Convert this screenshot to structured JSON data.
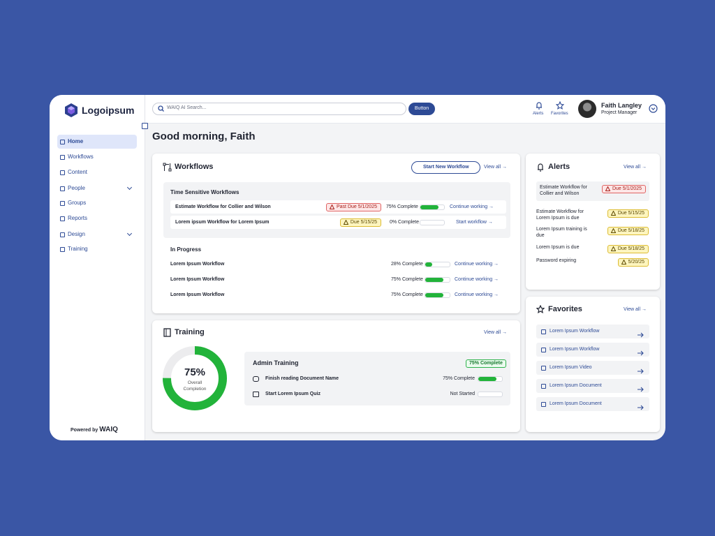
{
  "brand": {
    "name": "Logoipsum",
    "powered_by": "Powered by",
    "powered_brand": "WAIQ"
  },
  "nav": [
    {
      "label": "Home",
      "active": true
    },
    {
      "label": "Workflows"
    },
    {
      "label": "Content"
    },
    {
      "label": "People",
      "expandable": true
    },
    {
      "label": "Groups"
    },
    {
      "label": "Reports"
    },
    {
      "label": "Design",
      "expandable": true
    },
    {
      "label": "Training"
    }
  ],
  "topbar": {
    "search_placeholder": "WAIQ AI Search...",
    "button": "Button",
    "alerts": "Alerts",
    "favorites": "Favorites",
    "user_name": "Faith Langley",
    "user_role": "Project Manager"
  },
  "greeting": "Good morning, Faith",
  "workflows": {
    "title": "Workflows",
    "new_button": "Start New Workflow",
    "view_all": "View all →",
    "time_sensitive": {
      "title": "Time Sensitive Workflows",
      "rows": [
        {
          "name": "Estimate Workflow for Collier and Wilson",
          "badge": "Past Due 5/1/2025",
          "tone": "red",
          "label": "75% Complete",
          "progress": 75,
          "action": "Continue working →"
        },
        {
          "name": "Lorem ipsum Workflow for Lorem Ipsum",
          "badge": "Due 5/15/25",
          "tone": "yellow",
          "label": "0% Complete",
          "progress": 0,
          "action": "Start workflow →"
        }
      ]
    },
    "in_progress": {
      "title": "In Progress",
      "rows": [
        {
          "name": "Lorem Ipsum Workflow",
          "label": "28% Complete",
          "progress": 28,
          "action": "Continue working →"
        },
        {
          "name": "Lorem Ipsum Workflow",
          "label": "75% Complete",
          "progress": 75,
          "action": "Continue working →"
        },
        {
          "name": "Lorem Ipsum Workflow",
          "label": "75% Complete",
          "progress": 75,
          "action": "Continue working →"
        }
      ]
    }
  },
  "training": {
    "title": "Training",
    "view_all": "View all →",
    "donut": {
      "value": 75,
      "label": "75%",
      "caption": "Overall Completion"
    },
    "admin": {
      "title": "Admin Training",
      "badge": "75% Complete",
      "rows": [
        {
          "name": "Finish reading Document Name",
          "label": "75% Complete",
          "progress": 75
        },
        {
          "name": "Start Lorem Ipsum Quiz",
          "label": "Not Started",
          "progress": 0
        }
      ]
    }
  },
  "alerts": {
    "title": "Alerts",
    "view_all": "View all →",
    "items": [
      {
        "text": "Estimate Workflow for Collier and Wilson",
        "badge": "Due 5/1/2025",
        "tone": "red",
        "highlight": true
      },
      {
        "text": "Estimate Workflow for Lorem Ipsum is due",
        "badge": "Due 5/15/25",
        "tone": "yellow"
      },
      {
        "text": "Lorem Ipsum training is due",
        "badge": "Due 5/18/25",
        "tone": "yellow"
      },
      {
        "text": "Lorem Ipsum is due",
        "badge": "Due 5/18/25",
        "tone": "yellow"
      },
      {
        "text": "Password expiring",
        "badge": "5/20/25",
        "tone": "yellow"
      }
    ]
  },
  "favorites": {
    "title": "Favorites",
    "view_all": "View all →",
    "items": [
      "Lorem Ipsum Workflow",
      "Lorem Ipsum Workflow",
      "Lorem Ipsum Video",
      "Lorem Ipsum Document",
      "Lorem Ipsum Document"
    ]
  }
}
